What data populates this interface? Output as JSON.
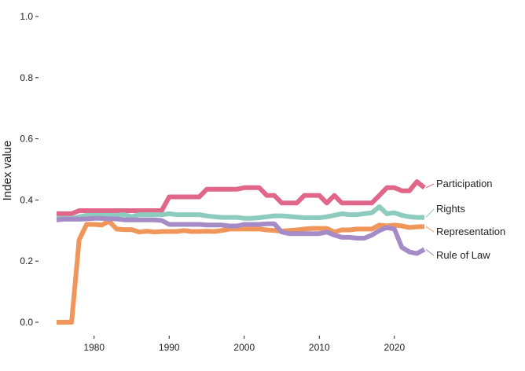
{
  "chart_data": {
    "type": "line",
    "title": "",
    "xlabel": "",
    "ylabel": "Index value",
    "xlim": [
      1975,
      2024
    ],
    "ylim": [
      0,
      1
    ],
    "x_ticks": [
      "1980",
      "1990",
      "2000",
      "2010",
      "2020"
    ],
    "y_ticks": [
      "0.0",
      "0.2",
      "0.4",
      "0.6",
      "0.8",
      "1.0"
    ],
    "grid": false,
    "legend": "direct labels at right end of lines",
    "years": [
      1975,
      1976,
      1977,
      1978,
      1979,
      1980,
      1981,
      1982,
      1983,
      1984,
      1985,
      1986,
      1987,
      1988,
      1989,
      1990,
      1991,
      1992,
      1993,
      1994,
      1995,
      1996,
      1997,
      1998,
      1999,
      2000,
      2001,
      2002,
      2003,
      2004,
      2005,
      2006,
      2007,
      2008,
      2009,
      2010,
      2011,
      2012,
      2013,
      2014,
      2015,
      2016,
      2017,
      2018,
      2019,
      2020,
      2021,
      2022,
      2023,
      2024
    ],
    "series": [
      {
        "name": "Participation",
        "color": "#e0678a",
        "values": [
          0.355,
          0.355,
          0.355,
          0.365,
          0.365,
          0.365,
          0.365,
          0.365,
          0.365,
          0.365,
          0.365,
          0.365,
          0.365,
          0.365,
          0.365,
          0.41,
          0.41,
          0.41,
          0.41,
          0.41,
          0.435,
          0.435,
          0.435,
          0.435,
          0.435,
          0.44,
          0.44,
          0.44,
          0.415,
          0.415,
          0.39,
          0.39,
          0.39,
          0.415,
          0.415,
          0.415,
          0.39,
          0.415,
          0.39,
          0.39,
          0.39,
          0.39,
          0.39,
          0.415,
          0.44,
          0.44,
          0.43,
          0.43,
          0.46,
          0.44
        ]
      },
      {
        "name": "Rights",
        "color": "#8dcbbf",
        "values": [
          0.34,
          0.34,
          0.34,
          0.345,
          0.35,
          0.35,
          0.35,
          0.35,
          0.35,
          0.352,
          0.345,
          0.352,
          0.352,
          0.352,
          0.352,
          0.355,
          0.352,
          0.352,
          0.352,
          0.352,
          0.348,
          0.345,
          0.343,
          0.343,
          0.343,
          0.34,
          0.34,
          0.342,
          0.345,
          0.348,
          0.348,
          0.346,
          0.344,
          0.342,
          0.342,
          0.342,
          0.345,
          0.35,
          0.355,
          0.352,
          0.352,
          0.355,
          0.358,
          0.378,
          0.355,
          0.358,
          0.35,
          0.345,
          0.343,
          0.343
        ]
      },
      {
        "name": "Representation",
        "color": "#f0965a",
        "values": [
          0.0,
          0.0,
          0.0,
          0.27,
          0.32,
          0.32,
          0.318,
          0.33,
          0.305,
          0.303,
          0.303,
          0.295,
          0.298,
          0.295,
          0.297,
          0.297,
          0.297,
          0.3,
          0.297,
          0.297,
          0.298,
          0.297,
          0.3,
          0.305,
          0.305,
          0.305,
          0.305,
          0.305,
          0.302,
          0.3,
          0.298,
          0.3,
          0.302,
          0.305,
          0.307,
          0.307,
          0.307,
          0.295,
          0.302,
          0.302,
          0.305,
          0.305,
          0.305,
          0.318,
          0.315,
          0.318,
          0.315,
          0.31,
          0.312,
          0.313
        ]
      },
      {
        "name": "Rule of Law",
        "color": "#a58cc6",
        "values": [
          0.335,
          0.337,
          0.337,
          0.337,
          0.338,
          0.34,
          0.34,
          0.338,
          0.338,
          0.335,
          0.335,
          0.335,
          0.335,
          0.335,
          0.333,
          0.32,
          0.32,
          0.32,
          0.32,
          0.32,
          0.318,
          0.318,
          0.318,
          0.315,
          0.315,
          0.32,
          0.32,
          0.32,
          0.322,
          0.322,
          0.295,
          0.29,
          0.29,
          0.29,
          0.29,
          0.29,
          0.295,
          0.285,
          0.278,
          0.278,
          0.275,
          0.275,
          0.285,
          0.3,
          0.31,
          0.305,
          0.245,
          0.23,
          0.225,
          0.238
        ]
      }
    ]
  }
}
